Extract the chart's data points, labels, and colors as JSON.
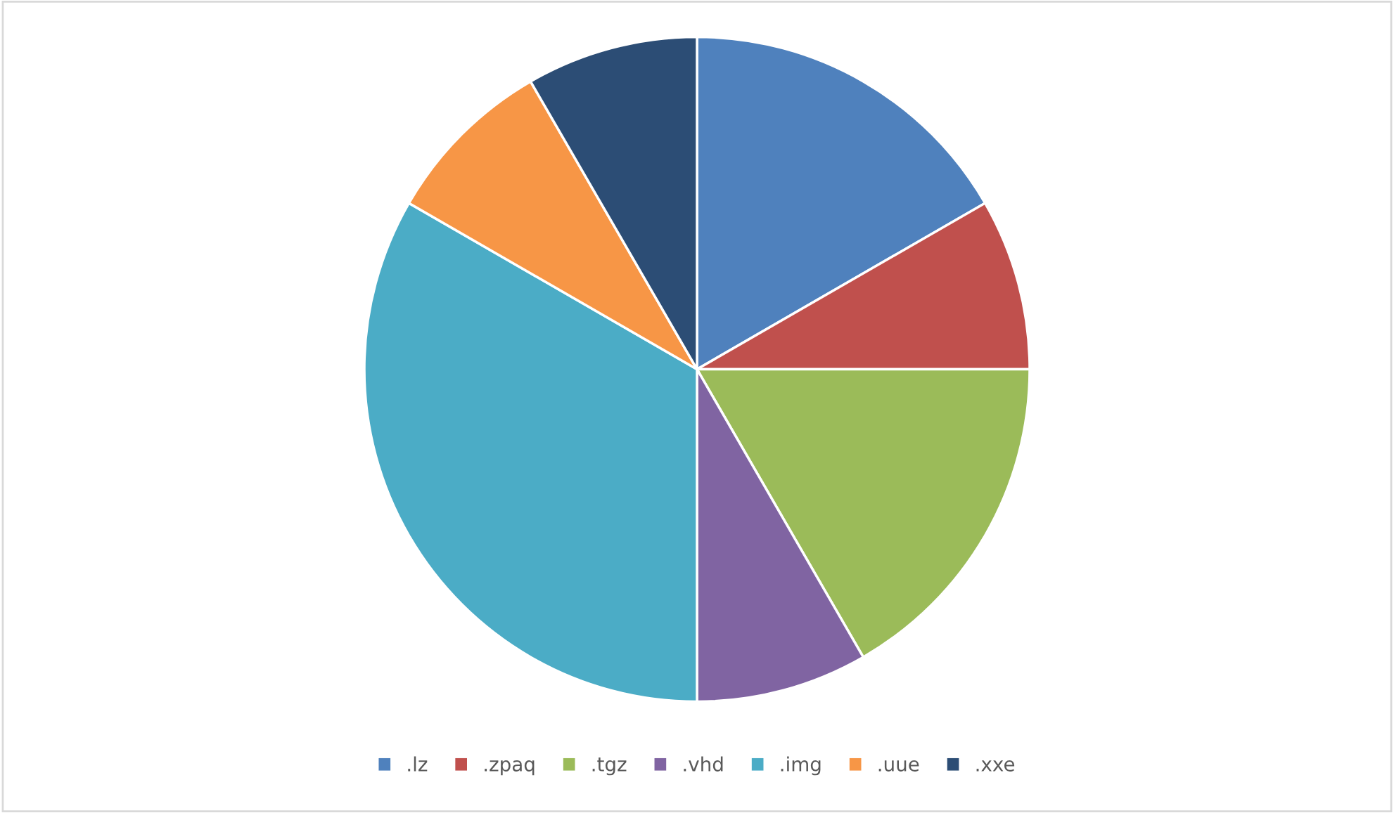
{
  "chart_data": {
    "type": "pie",
    "categories": [
      ".lz",
      ".zpaq",
      ".tgz",
      ".vhd",
      ".img",
      ".uue",
      ".xxe"
    ],
    "values": [
      16.67,
      8.33,
      16.67,
      8.33,
      33.33,
      8.33,
      8.34
    ],
    "colors": [
      "#4f81bd",
      "#c0504d",
      "#9bbb59",
      "#8064a2",
      "#4bacc6",
      "#f79646",
      "#2c4d75"
    ],
    "legend": "bottom"
  }
}
